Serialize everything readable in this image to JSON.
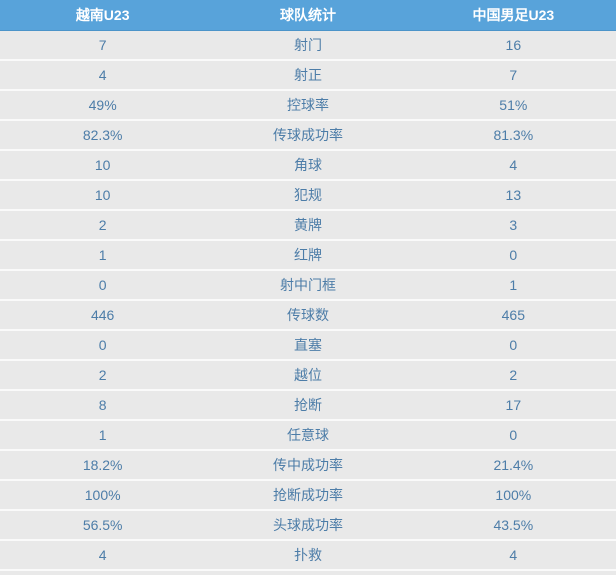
{
  "colors": {
    "header_bg": "#58a3da",
    "header_text": "#ffffff",
    "row_bg": "#e9e9e9",
    "row_separator": "#fafafa",
    "cell_text": "#4d7da8"
  },
  "header": {
    "home_team": "越南U23",
    "title": "球队统计",
    "away_team": "中国男足U23"
  },
  "stats": [
    {
      "home": "7",
      "label": "射门",
      "away": "16"
    },
    {
      "home": "4",
      "label": "射正",
      "away": "7"
    },
    {
      "home": "49%",
      "label": "控球率",
      "away": "51%"
    },
    {
      "home": "82.3%",
      "label": "传球成功率",
      "away": "81.3%"
    },
    {
      "home": "10",
      "label": "角球",
      "away": "4"
    },
    {
      "home": "10",
      "label": "犯规",
      "away": "13"
    },
    {
      "home": "2",
      "label": "黄牌",
      "away": "3"
    },
    {
      "home": "1",
      "label": "红牌",
      "away": "0"
    },
    {
      "home": "0",
      "label": "射中门框",
      "away": "1"
    },
    {
      "home": "446",
      "label": "传球数",
      "away": "465"
    },
    {
      "home": "0",
      "label": "直塞",
      "away": "0"
    },
    {
      "home": "2",
      "label": "越位",
      "away": "2"
    },
    {
      "home": "8",
      "label": "抢断",
      "away": "17"
    },
    {
      "home": "1",
      "label": "任意球",
      "away": "0"
    },
    {
      "home": "18.2%",
      "label": "传中成功率",
      "away": "21.4%"
    },
    {
      "home": "100%",
      "label": "抢断成功率",
      "away": "100%"
    },
    {
      "home": "56.5%",
      "label": "头球成功率",
      "away": "43.5%"
    },
    {
      "home": "4",
      "label": "扑救",
      "away": "4"
    }
  ]
}
